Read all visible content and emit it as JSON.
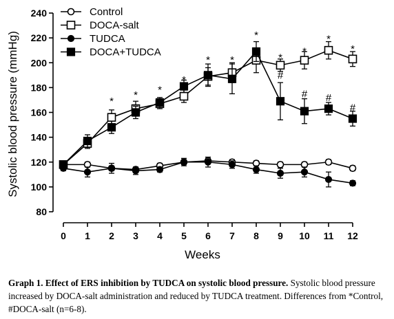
{
  "chart_data": {
    "type": "line",
    "xlabel": "Weeks",
    "ylabel": "Systolic blood pressure (mmHg)",
    "ylim": [
      80,
      240
    ],
    "yticks": [
      80,
      100,
      120,
      140,
      160,
      180,
      200,
      220,
      240
    ],
    "x": [
      0,
      1,
      2,
      3,
      4,
      5,
      6,
      7,
      8,
      9,
      10,
      11,
      12
    ],
    "legend_position": "top-left",
    "series": [
      {
        "name": "Control",
        "marker": "open-circle",
        "values": [
          118,
          118,
          115,
          114,
          117,
          120,
          121,
          120,
          119,
          118,
          118,
          120,
          115
        ],
        "errors": [
          2,
          2,
          2,
          2,
          2,
          2,
          2,
          2,
          2,
          2,
          2,
          2,
          2
        ]
      },
      {
        "name": "DOCA-salt",
        "marker": "open-square",
        "values": [
          118,
          135,
          156,
          163,
          167,
          173,
          189,
          192,
          202,
          198,
          202,
          210,
          203
        ],
        "errors": [
          2,
          4,
          6,
          6,
          4,
          5,
          7,
          8,
          10,
          5,
          7,
          7,
          6
        ]
      },
      {
        "name": "TUDCA",
        "marker": "filled-circle",
        "values": [
          115,
          112,
          115,
          113,
          114,
          120,
          120,
          118,
          114,
          111,
          112,
          106,
          103
        ],
        "errors": [
          2,
          4,
          4,
          3,
          2,
          3,
          4,
          3,
          3,
          4,
          4,
          6,
          2
        ]
      },
      {
        "name": "DOCA+TUDCA",
        "marker": "filled-square",
        "values": [
          118,
          137,
          148,
          160,
          168,
          181,
          190,
          187,
          209,
          169,
          161,
          163,
          155
        ],
        "errors": [
          2,
          5,
          5,
          5,
          4,
          5,
          9,
          12,
          8,
          15,
          10,
          5,
          6
        ]
      }
    ],
    "annotations": [
      {
        "x": 2,
        "y": 172,
        "text": "*"
      },
      {
        "x": 3,
        "y": 177,
        "text": "*"
      },
      {
        "x": 4,
        "y": 181,
        "text": "*"
      },
      {
        "x": 5,
        "y": 189,
        "text": "*"
      },
      {
        "x": 6,
        "y": 205,
        "text": "*"
      },
      {
        "x": 7,
        "y": 205,
        "text": "*"
      },
      {
        "x": 8,
        "y": 225,
        "text": "*"
      },
      {
        "x": 9,
        "y": 207,
        "text": "*"
      },
      {
        "x": 9,
        "y": 190,
        "text": "#"
      },
      {
        "x": 10,
        "y": 212,
        "text": "*"
      },
      {
        "x": 10,
        "y": 175,
        "text": "#"
      },
      {
        "x": 11,
        "y": 222,
        "text": "*"
      },
      {
        "x": 11,
        "y": 172,
        "text": "#"
      },
      {
        "x": 12,
        "y": 214,
        "text": "*"
      },
      {
        "x": 12,
        "y": 164,
        "text": "#"
      }
    ]
  },
  "caption": {
    "bold": "Graph 1. Effect of ERS inhibition by TUDCA on systolic blood pressure.",
    "text": " Systolic blood pressure increased by DOCA-salt administration and reduced by TUDCA treatment. Differences from *Control, #DOCA-salt (n=6-8)."
  }
}
